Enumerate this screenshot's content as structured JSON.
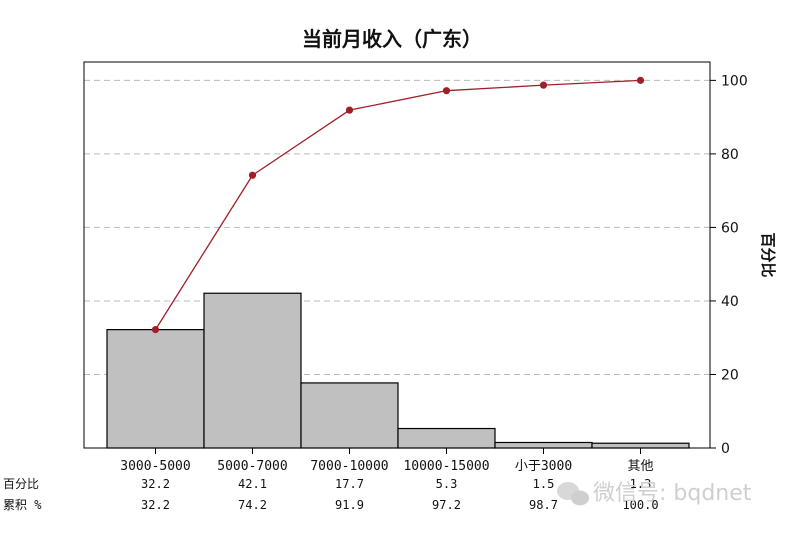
{
  "chart_data": {
    "type": "bar",
    "title": "当前月收入（广东）",
    "categories": [
      "3000-5000",
      "5000-7000",
      "7000-10000",
      "10000-15000",
      "小于3000",
      "其他"
    ],
    "series": [
      {
        "values": [
          32.2,
          42.1,
          17.7,
          5.3,
          1.5,
          1.3
        ]
      },
      {
        "type": "line",
        "values": [
          32.2,
          74.2,
          91.9,
          97.2,
          98.7,
          100.0
        ]
      }
    ],
    "ylabel_right": "百分比",
    "ylim": [
      0,
      105
    ],
    "yticks": [
      0,
      20,
      40,
      60,
      80,
      100
    ],
    "grid": true,
    "table": {
      "rows": [
        {
          "label": "百分比",
          "values": [
            "32.2",
            "42.1",
            "17.7",
            "5.3",
            "1.5",
            "1.3"
          ]
        },
        {
          "label": "累积 %",
          "values": [
            "32.2",
            "74.2",
            "91.9",
            "97.2",
            "98.7",
            "100.0"
          ]
        }
      ]
    },
    "colors": {
      "bar": "#c0c0c0",
      "line": "#a0202a",
      "grid": "#bbbbbb"
    }
  },
  "watermark": "微信号: bqdnet"
}
